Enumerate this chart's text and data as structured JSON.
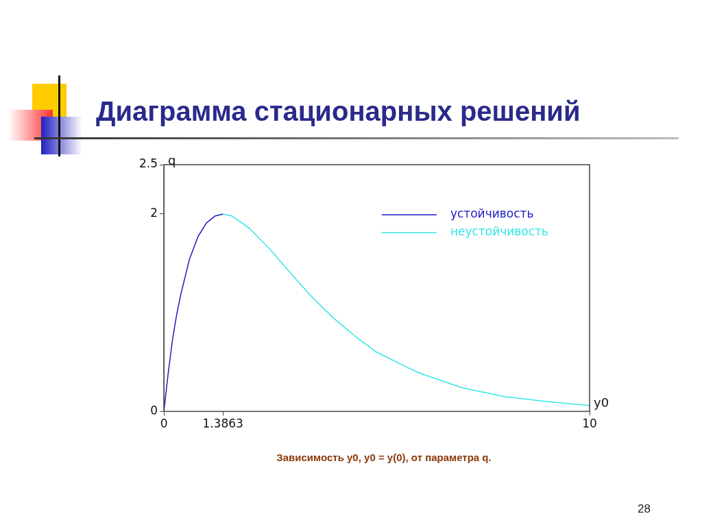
{
  "chart_data": {
    "type": "line",
    "title": "Диаграмма стационарных решений",
    "xlabel": "y0",
    "ylabel": "q",
    "xlim": [
      0,
      10
    ],
    "xticks": [
      0,
      {
        "value": 1.3863,
        "label": "1.3863"
      },
      10
    ],
    "ylim": [
      0,
      2.5
    ],
    "yticks": [
      0,
      2,
      2.5
    ],
    "legend": "top right",
    "marker": "none",
    "line_style": "solid",
    "series": [
      {
        "name": "устойчивость",
        "color": "#1c1cc0",
        "x": [
          0,
          0.1,
          0.2,
          0.3,
          0.4,
          0.6,
          0.8,
          1.0,
          1.2,
          1.3863
        ],
        "values": [
          0,
          0.38,
          0.72,
          0.98,
          1.19,
          1.54,
          1.77,
          1.91,
          1.98,
          2
        ]
      },
      {
        "name": "неустойчивость",
        "color": "#33e6e6",
        "x": [
          1.3863,
          1.6,
          2,
          2.5,
          3,
          3.5,
          4,
          4.5,
          5,
          5.7,
          6,
          7,
          8,
          9,
          10
        ],
        "values": [
          2,
          1.98,
          1.86,
          1.64,
          1.39,
          1.15,
          0.94,
          0.76,
          0.6,
          0.45,
          0.39,
          0.24,
          0.15,
          0.1,
          0.06
        ]
      }
    ],
    "annotations": [
      "Зависимость y0, y0 = y(0), от параметра q.",
      "28"
    ]
  }
}
